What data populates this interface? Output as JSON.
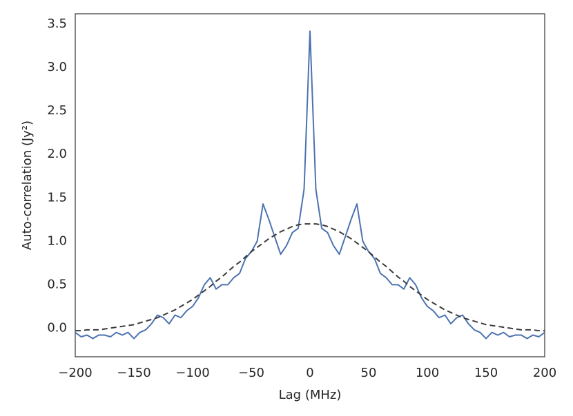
{
  "chart_data": {
    "type": "line",
    "xlabel": "Lag (MHz)",
    "ylabel": "Auto-correlation (Jy²)",
    "x": [
      -200,
      -195,
      -190,
      -185,
      -180,
      -175,
      -170,
      -165,
      -160,
      -155,
      -150,
      -145,
      -140,
      -135,
      -130,
      -125,
      -120,
      -115,
      -110,
      -105,
      -100,
      -95,
      -90,
      -85,
      -80,
      -75,
      -70,
      -65,
      -60,
      -55,
      -50,
      -45,
      -40,
      -35,
      -30,
      -25,
      -20,
      -15,
      -10,
      -5,
      0,
      5,
      10,
      15,
      20,
      25,
      30,
      35,
      40,
      45,
      50,
      55,
      60,
      65,
      70,
      75,
      80,
      85,
      90,
      95,
      100,
      105,
      110,
      115,
      120,
      125,
      130,
      135,
      140,
      145,
      150,
      155,
      160,
      165,
      170,
      175,
      180,
      185,
      190,
      195,
      200
    ],
    "series": [
      {
        "color": "#4c72b0",
        "dashed": false,
        "values": [
          -0.05,
          -0.1,
          -0.08,
          -0.12,
          -0.08,
          -0.08,
          -0.1,
          -0.05,
          -0.08,
          -0.05,
          -0.12,
          -0.05,
          -0.02,
          0.05,
          0.15,
          0.12,
          0.05,
          0.15,
          0.12,
          0.2,
          0.25,
          0.35,
          0.5,
          0.58,
          0.45,
          0.5,
          0.5,
          0.58,
          0.63,
          0.8,
          0.88,
          1.0,
          1.43,
          1.25,
          1.05,
          0.85,
          0.95,
          1.1,
          1.15,
          1.6,
          3.42,
          1.6,
          1.15,
          1.1,
          0.95,
          0.85,
          1.05,
          1.25,
          1.43,
          1.0,
          0.88,
          0.8,
          0.63,
          0.58,
          0.5,
          0.5,
          0.45,
          0.58,
          0.5,
          0.35,
          0.25,
          0.2,
          0.12,
          0.15,
          0.05,
          0.12,
          0.15,
          0.05,
          -0.02,
          -0.05,
          -0.12,
          -0.05,
          -0.08,
          -0.05,
          -0.1,
          -0.08,
          -0.08,
          -0.12,
          -0.08,
          -0.1,
          -0.05
        ]
      },
      {
        "color": "#3a3a3a",
        "dashed": true,
        "values": [
          -0.03,
          -0.03,
          -0.02,
          -0.02,
          -0.02,
          -0.01,
          0.0,
          0.01,
          0.02,
          0.03,
          0.04,
          0.06,
          0.08,
          0.1,
          0.12,
          0.15,
          0.18,
          0.21,
          0.25,
          0.29,
          0.33,
          0.38,
          0.43,
          0.48,
          0.54,
          0.59,
          0.65,
          0.71,
          0.76,
          0.82,
          0.88,
          0.93,
          0.98,
          1.03,
          1.07,
          1.11,
          1.14,
          1.17,
          1.19,
          1.2,
          1.2,
          1.2,
          1.19,
          1.17,
          1.14,
          1.11,
          1.07,
          1.03,
          0.98,
          0.93,
          0.88,
          0.82,
          0.76,
          0.71,
          0.65,
          0.59,
          0.54,
          0.48,
          0.43,
          0.38,
          0.33,
          0.29,
          0.25,
          0.21,
          0.18,
          0.15,
          0.12,
          0.1,
          0.08,
          0.06,
          0.04,
          0.03,
          0.02,
          0.01,
          0.0,
          -0.01,
          -0.02,
          -0.02,
          -0.02,
          -0.03,
          -0.03
        ]
      }
    ],
    "xlim": [
      -200,
      200
    ],
    "ylim": [
      -0.33,
      3.62
    ],
    "xticks": [
      {
        "value": -200,
        "label": "−200"
      },
      {
        "value": -150,
        "label": "−150"
      },
      {
        "value": -100,
        "label": "−100"
      },
      {
        "value": -50,
        "label": "−50"
      },
      0,
      50,
      100,
      150,
      200
    ],
    "yticks": [
      {
        "value": 0,
        "label": "0.0"
      },
      0.5,
      {
        "value": 1,
        "label": "1.0"
      },
      1.5,
      {
        "value": 2,
        "label": "2.0"
      },
      2.5,
      {
        "value": 3,
        "label": "3.0"
      },
      3.5
    ],
    "grid": false
  }
}
